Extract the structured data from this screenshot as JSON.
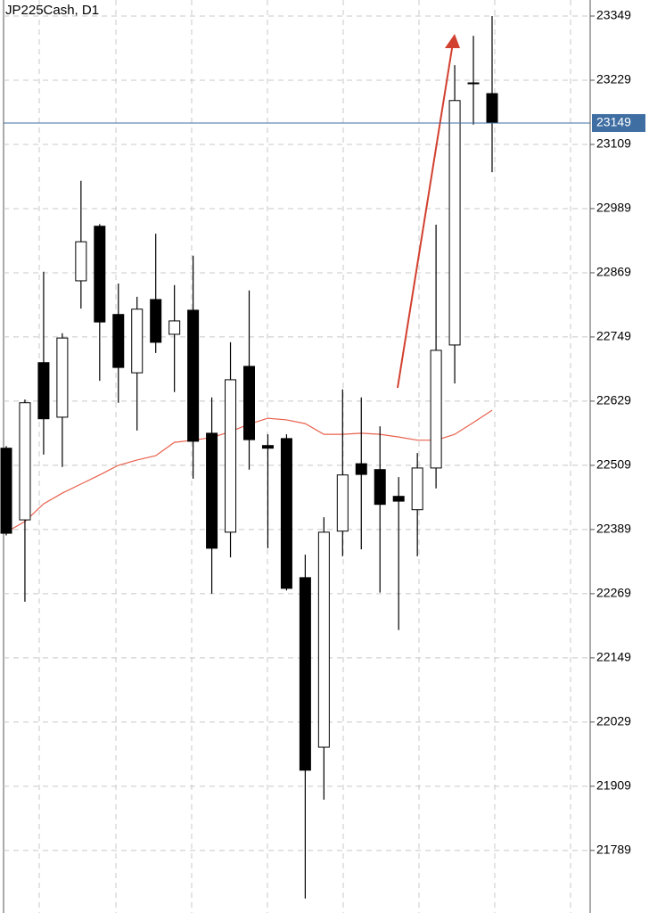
{
  "chart_data": {
    "type": "candlestick",
    "title": "JP225Cash, D1",
    "open": [
      22541,
      22407,
      22701,
      22599,
      22854,
      22956,
      22791,
      22682,
      22819,
      22754,
      22799,
      22569,
      22384,
      22694,
      22546,
      22559,
      22299,
      21982,
      22386,
      22512,
      22501,
      22451,
      22426,
      22504,
      22734,
      23224,
      23204
    ],
    "high": [
      22545,
      22632,
      22871,
      22756,
      23041,
      22960,
      22849,
      22824,
      22942,
      22846,
      22901,
      22636,
      22739,
      22836,
      22567,
      22567,
      22342,
      22412,
      22651,
      22636,
      22582,
      22487,
      22532,
      22959,
      23257,
      23312,
      23349
    ],
    "low": [
      22378,
      22254,
      22529,
      22506,
      22802,
      22667,
      22626,
      22574,
      22719,
      22646,
      22484,
      22269,
      22337,
      22501,
      22354,
      22275,
      21699,
      21884,
      22339,
      22352,
      22271,
      22201,
      22339,
      22466,
      22662,
      23146,
      23057
    ],
    "close": [
      22382,
      22626,
      22596,
      22747,
      22927,
      22777,
      22692,
      22801,
      22739,
      22779,
      22554,
      22354,
      22669,
      22557,
      22541,
      22279,
      21939,
      22384,
      22491,
      22492,
      22436,
      22442,
      22504,
      22724,
      23191,
      23224,
      23149
    ],
    "up_color": "#ffffff",
    "down_color": "#000000",
    "moving_average": {
      "color": "#e8604c",
      "values": [
        22384,
        22404,
        22437,
        22457,
        22474,
        22491,
        22509,
        22519,
        22527,
        22552,
        22556,
        22561,
        22572,
        22586,
        22597,
        22594,
        22587,
        22567,
        22567,
        22569,
        22567,
        22562,
        22556,
        22556,
        22567,
        22589,
        22612
      ]
    },
    "last_price": 23149,
    "last_price_color": "#3f6ea3",
    "ylim": [
      21672,
      23379
    ],
    "yticks": [
      23349,
      23229,
      23109,
      22989,
      22869,
      22749,
      22629,
      22509,
      22389,
      22269,
      22149,
      22029,
      21909,
      21789
    ],
    "grid": true
  }
}
